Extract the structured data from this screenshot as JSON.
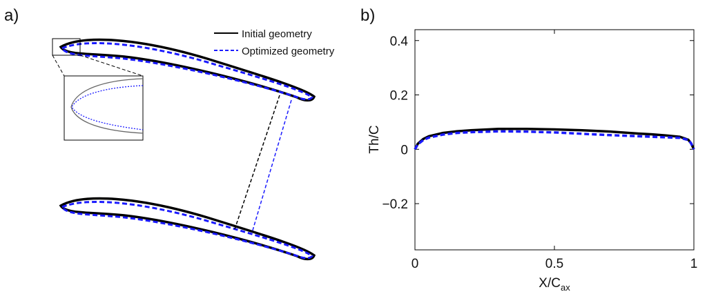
{
  "panel_labels": [
    "a)",
    "b)"
  ],
  "chart_data": {
    "type": "line",
    "ylabel": "Th/C",
    "xlabel": "X/C",
    "xlabel_sub": "ax",
    "x": [
      0,
      0.01,
      0.03,
      0.05,
      0.1,
      0.15,
      0.2,
      0.3,
      0.4,
      0.5,
      0.6,
      0.7,
      0.8,
      0.85,
      0.9,
      0.95,
      0.98,
      0.99,
      1
    ],
    "series": [
      {
        "name": "Initial geometry",
        "color": "#000000",
        "dash": false,
        "values": [
          0,
          0.02,
          0.038,
          0.048,
          0.06,
          0.066,
          0.07,
          0.075,
          0.075,
          0.073,
          0.07,
          0.065,
          0.058,
          0.055,
          0.051,
          0.046,
          0.035,
          0.022,
          0
        ]
      },
      {
        "name": "Optimized geometry",
        "color": "#1a1aff",
        "dash": true,
        "values": [
          0,
          0.018,
          0.034,
          0.043,
          0.054,
          0.06,
          0.063,
          0.066,
          0.065,
          0.062,
          0.057,
          0.052,
          0.048,
          0.046,
          0.044,
          0.042,
          0.034,
          0.022,
          0
        ]
      }
    ],
    "xlim": [
      0,
      1
    ],
    "xticks": [
      0,
      0.5,
      1
    ],
    "ylim": [
      -0.37,
      0.44
    ],
    "yticks": [
      {
        "value": -0.2,
        "label": "−0.2"
      },
      0,
      0.2,
      0.4
    ]
  }
}
